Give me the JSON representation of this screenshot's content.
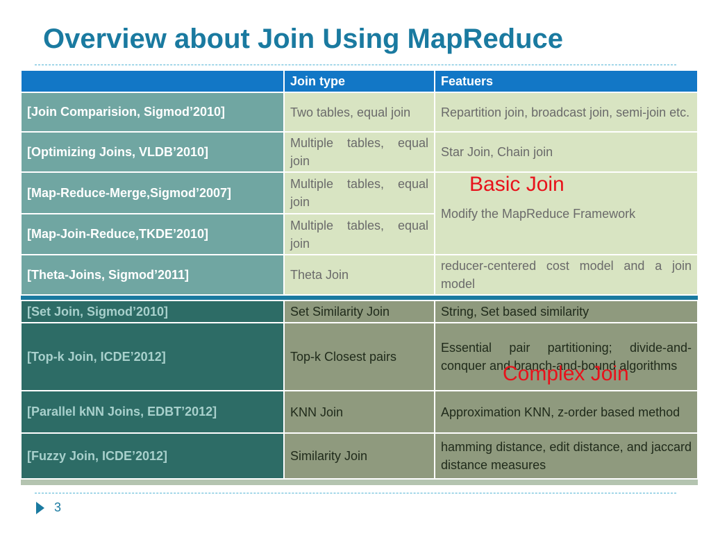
{
  "slide": {
    "title": "Overview about Join Using MapReduce",
    "page_number": "3"
  },
  "table": {
    "headers": [
      "",
      "Join type",
      "Featuers"
    ],
    "basic_rows": [
      {
        "paper": "[Join Comparision, Sigmod’2010]",
        "join_type": "Two tables, equal join",
        "features": "Repartition join, broadcast join, semi-join etc."
      },
      {
        "paper": "[Optimizing Joins, VLDB’2010]",
        "join_type": "Multiple tables, equal join",
        "features": "Star Join, Chain join"
      },
      {
        "paper": "[Map-Reduce-Merge,Sigmod’2007]",
        "join_type": "Multiple tables, equal join",
        "features": "Modify the MapReduce Framework"
      },
      {
        "paper": "[Map-Join-Reduce,TKDE’2010]",
        "join_type": "Multiple tables, equal join"
      },
      {
        "paper": "[Theta-Joins, Sigmod’2011]",
        "join_type": "Theta Join",
        "features": "reducer-centered cost model and a join model"
      }
    ],
    "complex_rows": [
      {
        "paper": "[Set Join, Sigmod’2010]",
        "join_type": "Set Similarity Join",
        "features": "String, Set based similarity"
      },
      {
        "paper": "[Top-k Join, ICDE’2012]",
        "join_type": "Top-k Closest pairs",
        "features": "Essential pair partitioning; divide-and-conquer and branch-and-bound algorithms"
      },
      {
        "paper": "[Parallel kNN Joins, EDBT’2012]",
        "join_type": "KNN Join",
        "features": "Approximation KNN, z-order based method"
      },
      {
        "paper": "[Fuzzy Join, ICDE’2012]",
        "join_type": "Similarity Join",
        "features": "hamming distance, edit distance, and jaccard distance measures"
      }
    ]
  },
  "overlays": {
    "basic": "Basic Join",
    "complex": "Complex Join"
  },
  "colors": {
    "title": "#1a7aa0",
    "header": "#1277c6",
    "basic_paper": "#70a6a2",
    "basic_cell": "#d8e4c2",
    "complex_paper": "#2d6c66",
    "complex_cell": "#8f9a7e",
    "overlay_text": "#e8121b"
  }
}
